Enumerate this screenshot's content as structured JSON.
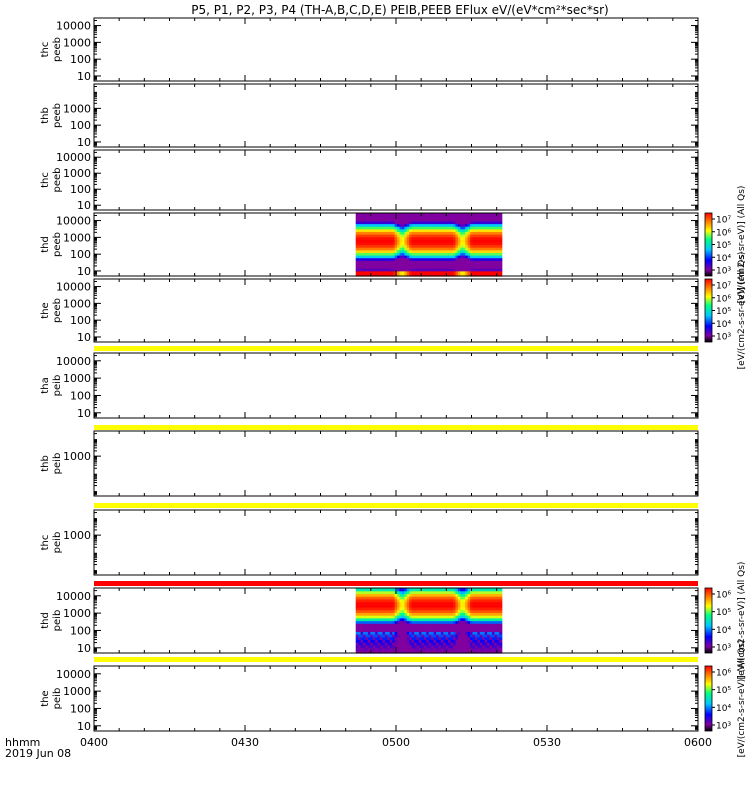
{
  "title": "P5, P1, P2, P3, P4 (TH-A,B,C,D,E) PEIB,PEEB EFlux eV/(eV*cm²*sec*sr)",
  "time_axis": {
    "label_line1": "hhmm",
    "label_line2": "2019 Jun 08",
    "ticks": [
      "0400",
      "0430",
      "0500",
      "0530",
      "0600"
    ]
  },
  "colorbars": [
    {
      "label": "[eV/(cm2-s-sr-eV)] (All Qs)",
      "tick_labels": [
        "10³",
        "10⁴",
        "10⁵",
        "10⁶",
        "10⁷"
      ],
      "exponents": [
        3,
        4,
        5,
        6,
        7
      ]
    },
    {
      "label": "[eV/(cm2-s-sr-eV)] (All Qs)",
      "tick_labels": [
        "10³",
        "10⁴",
        "10⁵",
        "10⁶",
        "10⁷"
      ],
      "exponents": [
        3,
        4,
        5,
        6,
        7
      ]
    },
    {
      "label": "[eV/(cm2-s-sr-eV)] (All Qs)",
      "tick_labels": [
        "10³",
        "10⁴",
        "10⁵",
        "10⁶"
      ],
      "exponents": [
        3,
        4,
        5,
        6
      ]
    },
    {
      "label": "[eV/(cm2-s-sr-eV)] (All Qs)",
      "tick_labels": [
        "10³",
        "10⁴",
        "10⁵",
        "10⁶"
      ],
      "exponents": [
        3,
        4,
        5,
        6
      ]
    }
  ],
  "chart_data": {
    "type": "heatmap",
    "x_unit": "hhmm",
    "x_range": [
      "0400",
      "0600"
    ],
    "y_unit": "eV",
    "y_scale": "log",
    "panels": [
      {
        "probe": "thc",
        "product": "peeb",
        "y_ticks": [
          "10",
          "100",
          "1000",
          "10000"
        ],
        "band": null,
        "data": null
      },
      {
        "probe": "thb",
        "product": "peeb",
        "y_ticks": [
          "10",
          "100",
          "1000"
        ],
        "band": null,
        "data": null
      },
      {
        "probe": "thc",
        "product": "peeb",
        "y_ticks": [
          "10",
          "100",
          "1000",
          "10000"
        ],
        "band": null,
        "data": null
      },
      {
        "probe": "thd",
        "product": "peeb",
        "y_ticks": [
          "10",
          "100",
          "1000",
          "10000"
        ],
        "band": null,
        "data": {
          "time_start": "0452",
          "time_end": "0521",
          "kind": "electron",
          "dips_at": [
            "0501",
            "0513"
          ],
          "peak_energy_ev": [
            200,
            2000
          ]
        }
      },
      {
        "probe": "the",
        "product": "peeb",
        "y_ticks": [
          "10",
          "100",
          "1000",
          "10000"
        ],
        "band": "#ffff00",
        "data": null
      },
      {
        "probe": "tha",
        "product": "peib",
        "y_ticks": [
          "10",
          "100",
          "1000",
          "10000"
        ],
        "band": "#ffff00",
        "data": null
      },
      {
        "probe": "thb",
        "product": "peib",
        "y_ticks": [
          "1000"
        ],
        "band": "#ffff00",
        "data": null
      },
      {
        "probe": "thc",
        "product": "peib",
        "y_ticks": [
          "1000"
        ],
        "band": "#ff0000",
        "data": null
      },
      {
        "probe": "thd",
        "product": "peib",
        "y_ticks": [
          "10",
          "100",
          "1000",
          "10000"
        ],
        "band": "#ffff00",
        "data": {
          "time_start": "0452",
          "time_end": "0521",
          "kind": "ion",
          "dips_at": [
            "0501",
            "0513"
          ],
          "peak_energy_ev": [
            1000,
            10000
          ]
        }
      },
      {
        "probe": "the",
        "product": "peib",
        "y_ticks": [
          "10",
          "100",
          "1000",
          "10000"
        ],
        "band": null,
        "data": null
      }
    ]
  },
  "colors": {
    "frame": "#000000",
    "rainbow": [
      "#8000a0",
      "#0000ff",
      "#00c8ff",
      "#00ff80",
      "#ffff00",
      "#ff8000",
      "#ff0000"
    ]
  }
}
